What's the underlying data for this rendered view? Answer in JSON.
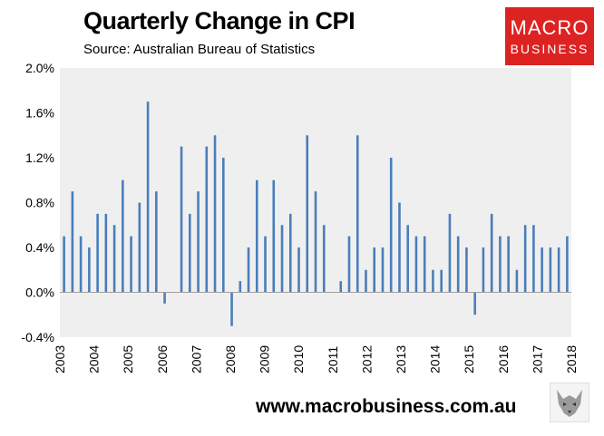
{
  "title": "Quarterly Change in CPI",
  "subtitle": "Source: Australian Bureau of Statistics",
  "logo": {
    "line1": "MACRO",
    "line2": "BUSINESS",
    "color": "#dd2222"
  },
  "footer": {
    "url": "www.macrobusiness.com.au"
  },
  "chart_data": {
    "type": "bar",
    "x_ticks": [
      "2003",
      "2004",
      "2005",
      "2006",
      "2007",
      "2008",
      "2009",
      "2010",
      "2011",
      "2012",
      "2013",
      "2014",
      "2015",
      "2016",
      "2017",
      "2018"
    ],
    "series": [
      {
        "values": [
          0.5,
          0.9,
          0.5,
          0.4,
          0.7,
          0.7,
          0.6,
          1.0,
          0.5,
          0.8,
          1.7,
          0.9,
          -0.1,
          0.0,
          1.3,
          0.7,
          0.9,
          1.3,
          1.4,
          1.2,
          -0.3,
          0.1,
          0.4,
          1.0,
          0.5,
          1.0,
          0.6,
          0.7,
          0.4,
          1.4,
          0.9,
          0.6,
          0.0,
          0.1,
          0.5,
          1.4,
          0.2,
          0.4,
          0.4,
          1.2,
          0.8,
          0.6,
          0.5,
          0.5,
          0.2,
          0.2,
          0.7,
          0.5,
          0.4,
          -0.2,
          0.4,
          0.7,
          0.5,
          0.5,
          0.2,
          0.6,
          0.6,
          0.4,
          0.4,
          0.4,
          0.5
        ]
      }
    ],
    "y_ticks": [
      "2.0%",
      "1.6%",
      "1.2%",
      "0.8%",
      "0.4%",
      "0.0%",
      "-0.4%"
    ],
    "ylim": [
      -0.4,
      2.0
    ],
    "bar_color": "#4a7ebb",
    "plot_background": "#efefef",
    "grid": false
  }
}
